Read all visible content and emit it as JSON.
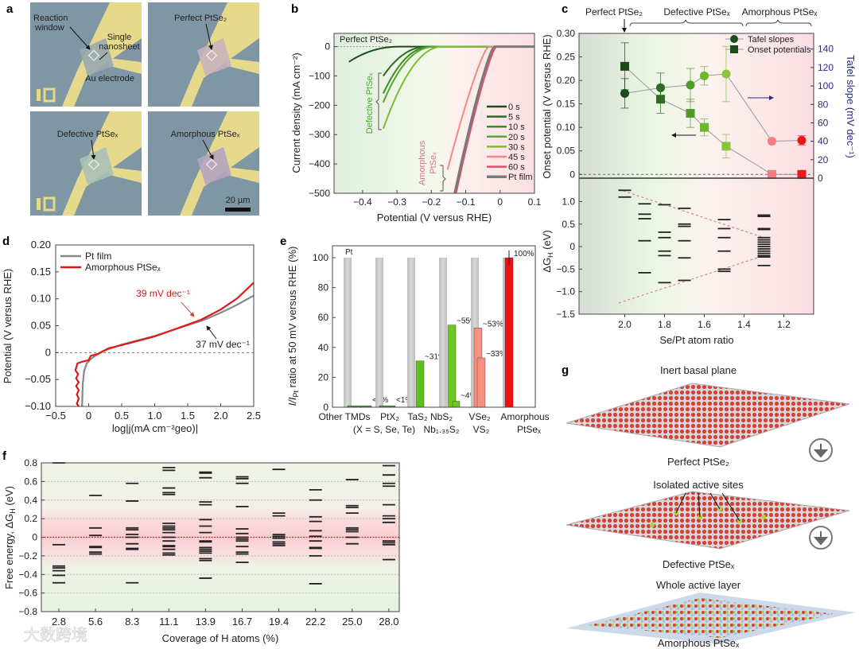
{
  "panel_labels": {
    "a": "a",
    "b": "b",
    "c": "c",
    "d": "d",
    "e": "e",
    "f": "f",
    "g": "g"
  },
  "panel_a": {
    "tiles": [
      {
        "title": "",
        "labels": [
          "Reaction window",
          "Single nanosheet",
          "Au electrode"
        ]
      },
      {
        "title": "Perfect PtSe₂"
      },
      {
        "title": "Defective PtSeₓ"
      },
      {
        "title": "Amorphous PtSeₓ"
      }
    ],
    "reaction_window": "Reaction",
    "reaction_window_2": "window",
    "single": "Single",
    "nanosheet": "nanosheet",
    "au_electrode": "Au electrode",
    "scale_bar": "20 µm"
  },
  "chart_data": [
    {
      "panel": "b",
      "type": "line",
      "xlabel": "Potential (V versus RHE)",
      "ylabel": "Current density (mA cm⁻²)",
      "xlim": [
        -0.48,
        0.1
      ],
      "ylim": [
        -500,
        45
      ],
      "xticks": [
        -0.4,
        -0.3,
        -0.2,
        -0.1,
        0,
        0.1
      ],
      "xtick_labels": [
        "−0.4",
        "−0.3",
        "−0.2",
        "−0.1",
        "0",
        "0.1"
      ],
      "yticks": [
        0,
        -100,
        -200,
        -300,
        -400,
        -500
      ],
      "ytick_labels": [
        "0",
        "−100",
        "−200",
        "−300",
        "−400",
        "−500"
      ],
      "annotations": {
        "perfect": "Perfect PtSe₂",
        "defective": "Defective PtSeₓ",
        "amorphous_1": "Amorphous",
        "amorphous_2": "PtSeₓ"
      },
      "legend_position": "bottom-right",
      "series": [
        {
          "name": "0 s",
          "color": "#1f4d1a",
          "onset": -0.29,
          "end": [
            -0.44,
            -52
          ],
          "power": 2.2
        },
        {
          "name": "5 s",
          "color": "#2d6b1f",
          "onset": -0.21,
          "end": [
            -0.34,
            -100
          ],
          "power": 2.2
        },
        {
          "name": "10 s",
          "color": "#3f8a26",
          "onset": -0.2,
          "end": [
            -0.34,
            -160
          ],
          "power": 2.2
        },
        {
          "name": "20 s",
          "color": "#55a82b",
          "onset": -0.19,
          "end": [
            -0.34,
            -190
          ],
          "power": 2.2
        },
        {
          "name": "30 s",
          "color": "#7cbf2c",
          "onset": -0.17,
          "end": [
            -0.34,
            -280
          ],
          "power": 2.0
        },
        {
          "name": "45 s",
          "color": "#f08a80",
          "onset": -0.035,
          "end": [
            -0.153,
            -420
          ],
          "power": 1.25
        },
        {
          "name": "60 s",
          "color": "#e0506a",
          "onset": -0.012,
          "end": [
            -0.128,
            -500
          ],
          "power": 1.25
        },
        {
          "name": "Pt film",
          "color": "#7a7a7a",
          "onset": -0.018,
          "end": [
            -0.132,
            -500
          ],
          "power": 1.25
        }
      ]
    },
    {
      "panel": "c-top",
      "type": "scatter",
      "xlabel": "Se/Pt atom ratio",
      "ylabel": "Onset potential (V versus RHE)",
      "ylabel_right": "Tafel slope (mV dec⁻¹)",
      "xlim": [
        2.23,
        1.05
      ],
      "ylim": [
        -0.008,
        0.3
      ],
      "ylim_right": [
        0,
        157
      ],
      "yticks": [
        0,
        0.05,
        0.1,
        0.15,
        0.2,
        0.25,
        0.3
      ],
      "ytick_labels": [
        "0",
        "0.05",
        "0.10",
        "0.15",
        "0.20",
        "0.25",
        "0.30"
      ],
      "yticks_right": [
        0,
        20,
        40,
        60,
        80,
        100,
        120,
        140
      ],
      "ytick_labels_right": [
        "0",
        "20",
        "40",
        "60",
        "80",
        "100",
        "120",
        "140"
      ],
      "annotations": {
        "perfect": "Perfect PtSe₂",
        "defective": "Defective PtSeₓ",
        "amorphous": "Amorphous PtSeₓ"
      },
      "legend": [
        "Tafel slopes",
        "Onset potentials"
      ],
      "legend_position": "top-right",
      "tafel": {
        "x": [
          2.0,
          1.82,
          1.67,
          1.6,
          1.49,
          1.26,
          1.11
        ],
        "y": [
          92,
          98,
          101,
          111,
          113,
          40,
          41
        ],
        "err": [
          16,
          16,
          18,
          10,
          30,
          3,
          5
        ]
      },
      "onset": {
        "x": [
          2.0,
          1.82,
          1.67,
          1.6,
          1.49,
          1.26,
          1.11
        ],
        "y": [
          0.23,
          0.16,
          0.13,
          0.1,
          0.06,
          0,
          0
        ],
        "err": [
          0.05,
          0.03,
          0.03,
          0.018,
          0.025,
          0,
          0
        ]
      },
      "colors": [
        "#1c4a1c",
        "#2f6b22",
        "#4d9a2a",
        "#6cb82a",
        "#8ac43a",
        "#f07f7f",
        "#e81818"
      ]
    },
    {
      "panel": "c-bottom",
      "type": "levels",
      "xlabel": "Se/Pt atom ratio",
      "ylabel": "ΔG_H (eV)",
      "ylabel_main": "ΔG",
      "ylabel_sub": "H",
      "ylabel_unit": " (eV)",
      "xlim": [
        2.23,
        1.05
      ],
      "ylim": [
        -1.5,
        1.52
      ],
      "xticks": [
        2.0,
        1.8,
        1.6,
        1.4,
        1.2
      ],
      "xtick_labels": [
        "2.0",
        "1.8",
        "1.6",
        "1.4",
        "1.2"
      ],
      "yticks": [
        1.0,
        0.5,
        0,
        -0.5,
        -1.0,
        -1.5
      ],
      "ytick_labels": [
        "1.0",
        "0.5",
        "0",
        "−0.5",
        "−1.0",
        "−1.5"
      ],
      "columns": [
        {
          "x": 2.0,
          "levels": [
            1.25,
            1.1
          ]
        },
        {
          "x": 1.9,
          "levels": [
            0.95,
            0.72,
            0.62,
            0.13,
            -0.58
          ]
        },
        {
          "x": 1.8,
          "levels": [
            0.93,
            0.32,
            0.2,
            -0.1,
            -0.2,
            -0.8
          ]
        },
        {
          "x": 1.7,
          "levels": [
            0.85,
            0.5,
            0.45,
            0.13,
            -0.25,
            -0.75
          ]
        },
        {
          "x": 1.5,
          "levels": [
            0.6,
            0.4,
            0.2,
            -0.1,
            -0.5,
            -0.55
          ]
        },
        {
          "x": 1.3,
          "levels": [
            0.7,
            0.67,
            0.4,
            0.38,
            0.2,
            0.15,
            0.1,
            0.05,
            0,
            -0.05,
            -0.1,
            -0.15,
            -0.2,
            -0.23,
            -0.42
          ]
        }
      ],
      "envelope": [
        [
          [
            2.03,
            1.27
          ],
          [
            1.3,
            0.2
          ]
        ],
        [
          [
            2.03,
            -1.25
          ],
          [
            1.3,
            -0.2
          ]
        ]
      ]
    },
    {
      "panel": "d",
      "type": "line",
      "xlabel": "log|j(mA cm⁻²geo)|",
      "ylabel": "Potential (V versus RHE)",
      "xlim": [
        -0.5,
        2.5
      ],
      "ylim": [
        -0.1,
        0.2
      ],
      "xticks": [
        -0.5,
        0,
        0.5,
        1,
        1.5,
        2,
        2.5
      ],
      "xtick_labels": [
        "−0.5",
        "0",
        "0.5",
        "1.0",
        "1.5",
        "2.0",
        "2.5"
      ],
      "yticks": [
        -0.1,
        -0.05,
        0,
        0.05,
        0.1,
        0.15,
        0.2
      ],
      "ytick_labels": [
        "−0.10",
        "−0.05",
        "0",
        "0.05",
        "0.10",
        "0.15",
        "0.20"
      ],
      "legend_position": "top-left",
      "annotations": {
        "red": "39 mV dec⁻¹",
        "grey": "37 mV dec⁻¹"
      },
      "series": [
        {
          "name": "Pt film",
          "color": "#888888",
          "points": [
            [
              -0.1,
              -0.1
            ],
            [
              -0.09,
              -0.06
            ],
            [
              -0.07,
              -0.035
            ],
            [
              -0.03,
              -0.02
            ],
            [
              0.05,
              -0.01
            ],
            [
              0.2,
              0.002
            ],
            [
              0.5,
              0.015
            ],
            [
              1,
              0.031
            ],
            [
              1.5,
              0.051
            ],
            [
              1.75,
              0.061
            ],
            [
              2,
              0.074
            ],
            [
              2.25,
              0.089
            ],
            [
              2.5,
              0.106
            ]
          ]
        },
        {
          "name": "Amorphous PtSeₓ",
          "color": "#e01818",
          "points": [
            [
              -0.15,
              -0.1
            ],
            [
              -0.18,
              -0.095
            ],
            [
              -0.15,
              -0.085
            ],
            [
              -0.18,
              -0.078
            ],
            [
              -0.15,
              -0.07
            ],
            [
              -0.19,
              -0.062
            ],
            [
              -0.15,
              -0.055
            ],
            [
              -0.19,
              -0.048
            ],
            [
              -0.16,
              -0.04
            ],
            [
              -0.2,
              -0.033
            ],
            [
              -0.17,
              -0.02
            ],
            [
              -0.1,
              -0.017
            ],
            [
              0,
              -0.014
            ],
            [
              0.03,
              -0.006
            ],
            [
              0.15,
              -0.002
            ],
            [
              0.3,
              0.008
            ],
            [
              0.5,
              0.014
            ],
            [
              1,
              0.03
            ],
            [
              1.5,
              0.052
            ],
            [
              1.7,
              0.061
            ],
            [
              2,
              0.08
            ],
            [
              2.25,
              0.101
            ],
            [
              2.5,
              0.13
            ]
          ]
        }
      ]
    },
    {
      "panel": "e",
      "type": "bar",
      "ylabel": "I/I_Pt ratio at 50 mV versus RHE (%)",
      "ylabel_i": "I/I",
      "ylabel_sub": "Pt",
      "ylabel_rest": " ratio at 50 mV versus RHE (%)",
      "ylim": [
        0,
        108
      ],
      "yticks": [
        0,
        20,
        40,
        60,
        80,
        100
      ],
      "ytick_labels": [
        "0",
        "20",
        "40",
        "60",
        "80",
        "100"
      ],
      "pt_label": "Pt",
      "groups": [
        {
          "lines": [
            "Other TMDs",
            ""
          ],
          "pt": 100,
          "bars": [
            {
              "value": 1,
              "label": "<1%",
              "color": "#4aa12a"
            }
          ]
        },
        {
          "lines": [
            "PtX₂",
            "(X = S, Se, Te)"
          ],
          "pt": 100,
          "bars": [
            {
              "value": 1,
              "label": "<1%",
              "color": "#4aa12a"
            }
          ]
        },
        {
          "lines": [
            "TaS₂",
            ""
          ],
          "pt": 100,
          "bars": [
            {
              "value": 31,
              "label": "~31%",
              "color": "#5cbf1e"
            }
          ]
        },
        {
          "lines": [
            "NbS₂",
            "Nb₁.₃₅S₂"
          ],
          "pt": 100,
          "bars": [
            {
              "value": 55,
              "label": "~55%",
              "color": "#6cc81e"
            },
            {
              "value": 4,
              "label": "~4%",
              "color": "#6cc81e"
            }
          ]
        },
        {
          "lines": [
            "VSe₂",
            "VS₂"
          ],
          "pt": 100,
          "bars": [
            {
              "value": 53,
              "label": "~53%",
              "color": "#f89080"
            },
            {
              "value": 33,
              "label": "~33%",
              "color": "#f89080"
            }
          ]
        },
        {
          "lines": [
            "Amorphous",
            "PtSeₓ"
          ],
          "pt": 100,
          "bars": [
            {
              "value": 100,
              "label": "100%",
              "color": "#f01010",
              "err": 5
            }
          ]
        }
      ]
    },
    {
      "panel": "f",
      "type": "levels",
      "xlabel": "Coverage of H atoms (%)",
      "ylabel": "Free energy, ΔG_H (eV)",
      "ylabel_main": "Free energy, ΔG",
      "ylabel_sub": "H",
      "ylabel_unit": " (eV)",
      "ylim": [
        -0.8,
        0.8
      ],
      "yticks": [
        0.8,
        0.6,
        0.4,
        0.2,
        0,
        -0.2,
        -0.4,
        -0.6,
        -0.8
      ],
      "ytick_labels": [
        "0.8",
        "0.6",
        "0.4",
        "0.2",
        "0",
        "−0.2",
        "−0.4",
        "−0.6",
        "−0.8"
      ],
      "categories": [
        "2.8",
        "5.6",
        "8.3",
        "11.1",
        "13.9",
        "16.7",
        "19.4",
        "22.2",
        "25.0",
        "28.0"
      ],
      "columns": [
        [
          0.8,
          -0.08,
          -0.31,
          -0.33,
          -0.36,
          -0.41,
          -0.49
        ],
        [
          0.45,
          0.1,
          0.02,
          -0.1,
          -0.11,
          -0.16,
          -0.18
        ],
        [
          0.58,
          0.39,
          0.1,
          0.08,
          0.03,
          0.0,
          -0.07,
          -0.12,
          -0.13,
          -0.49
        ],
        [
          0.75,
          0.72,
          0.53,
          0.48,
          0.46,
          0.15,
          0.12,
          0.1,
          0.08,
          0.05,
          0,
          -0.04,
          -0.09,
          -0.1,
          -0.13,
          -0.17,
          -0.19
        ],
        [
          0.7,
          0.69,
          0.64,
          0.38,
          0.35,
          0.19,
          0.12,
          0.05,
          -0.04,
          -0.05,
          -0.11,
          -0.13,
          -0.15,
          -0.17,
          -0.23,
          -0.25,
          -0.44
        ],
        [
          0.65,
          0.63,
          0.58,
          0.33,
          0.09,
          0.04,
          0,
          -0.02,
          -0.04,
          -0.1,
          -0.16,
          -0.18,
          -0.27
        ],
        [
          0.73,
          0.26,
          0.23,
          0.03,
          0.01,
          -0.01,
          -0.05,
          -0.07,
          -0.09
        ],
        [
          0.51,
          0.4,
          0.22,
          0.17,
          0.07,
          0.01,
          -0.04,
          -0.11,
          -0.12,
          -0.2,
          -0.5
        ],
        [
          0.62,
          0.34,
          0.32,
          0.26,
          0.1,
          0.08,
          0.06,
          0,
          -0.07
        ],
        [
          0.77,
          0.67,
          0.58,
          0.55,
          0.35,
          0.23,
          0.2,
          0.16,
          -0.04,
          -0.06,
          -0.08,
          -0.24
        ]
      ]
    }
  ],
  "panel_g": {
    "inert": "Inert basal plane",
    "perfect": "Perfect PtSe₂",
    "isolated": "Isolated active sites",
    "defective": "Defective PtSeₓ",
    "whole": "Whole active layer",
    "amorphous": "Amorphous PtSeₓ"
  },
  "watermark": "大数跨境",
  "colors": {
    "green_bg": "#e6f3df",
    "pink_bg": "#fbe3e6",
    "red": "#e01818",
    "navy": "#2a2a8c"
  }
}
